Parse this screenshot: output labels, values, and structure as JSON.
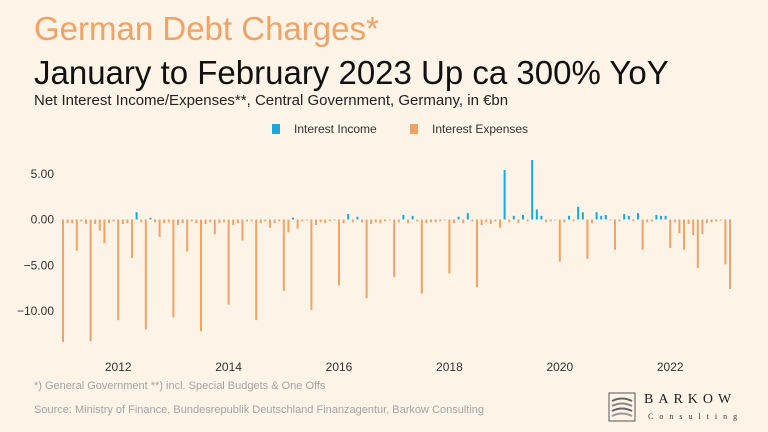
{
  "header": {
    "title_top": "German Debt Charges*",
    "title_main": "January to February 2023 Up ca 300% YoY",
    "subtitle": "Net Interest Income/Expenses**, Central Government, Germany, in €bn"
  },
  "colors": {
    "income": "#1aa7dc",
    "expenses": "#f2a262",
    "title_accent": "#f2a262",
    "background": "#fdf3e7"
  },
  "footer": {
    "note": "*) General Government **) incl. Special Budgets & One Offs",
    "source": "Source: Ministry of Finance, Bundesrepublik Deutschland Finanzagentur, Barkow Consulting"
  },
  "logo": {
    "name": "BARKOW",
    "sub": "Consulting"
  },
  "chart_data": {
    "type": "bar",
    "legend": [
      "Interest Income",
      "Interest Expenses"
    ],
    "legend_position": "top-center",
    "grid": false,
    "ylim": [
      -14,
      7
    ],
    "yticks": [
      5,
      0,
      -5,
      -10
    ],
    "ytick_labels": [
      "5.00",
      "0.00",
      "−5.00",
      "−10.00"
    ],
    "xticks": [
      2012,
      2014,
      2016,
      2018,
      2020,
      2022
    ],
    "x_start": "2011-01",
    "x_end": "2023-02",
    "series": [
      {
        "name": "Interest Expenses",
        "values": [
          -13.4,
          -0.4,
          -0.4,
          -3.4,
          -0.2,
          -0.5,
          -13.3,
          -0.5,
          -1.2,
          -2.6,
          -0.4,
          -0.2,
          -11.0,
          -0.5,
          -0.4,
          -4.2,
          0.8,
          -0.3,
          -12.0,
          0.2,
          -0.3,
          -1.9,
          -0.4,
          -0.3,
          -10.7,
          -0.6,
          -0.4,
          -3.5,
          -0.2,
          -0.4,
          -12.2,
          -0.5,
          -0.3,
          -1.6,
          -0.4,
          -0.3,
          -9.3,
          -0.6,
          -0.4,
          -2.3,
          -0.2,
          -0.2,
          -11.0,
          -0.4,
          -0.2,
          -0.9,
          -0.4,
          -0.2,
          -7.8,
          -1.4,
          0.2,
          -1.0,
          -0.2,
          -0.1,
          -9.9,
          -0.6,
          -0.3,
          -0.4,
          -0.2,
          -0.1,
          -7.2,
          -0.4,
          0.6,
          -0.3,
          0.3,
          -0.3,
          -8.6,
          -0.5,
          -0.3,
          -0.4,
          -0.2,
          -0.1,
          -6.3,
          -0.3,
          0.5,
          -0.4,
          0.4,
          -0.2,
          -8.1,
          -0.4,
          -0.3,
          -0.3,
          -0.2,
          -0.1,
          -5.9,
          -0.4,
          0.3,
          -0.4,
          0.7,
          -0.2,
          -7.4,
          -0.6,
          -0.3,
          -0.5,
          -0.2,
          -0.9,
          5.4,
          -0.3,
          0.4,
          -0.4,
          0.5,
          -0.2,
          6.5,
          1.1,
          0.4,
          -0.3,
          -0.2,
          -0.1,
          -4.6,
          -0.3,
          0.4,
          -0.2,
          1.4,
          0.8,
          -4.3,
          -0.4,
          0.8,
          0.4,
          0.5,
          -0.1,
          -3.3,
          -0.2,
          0.6,
          0.4,
          -0.2,
          0.7,
          -3.3,
          -0.3,
          -0.2,
          0.5,
          0.4,
          0.4,
          -3.1,
          -0.3,
          -1.5,
          -3.3,
          -0.5,
          -1.7,
          -5.3,
          -1.6,
          -0.4,
          -0.3,
          -0.2,
          -0.1,
          -4.9,
          -7.6
        ]
      }
    ]
  }
}
